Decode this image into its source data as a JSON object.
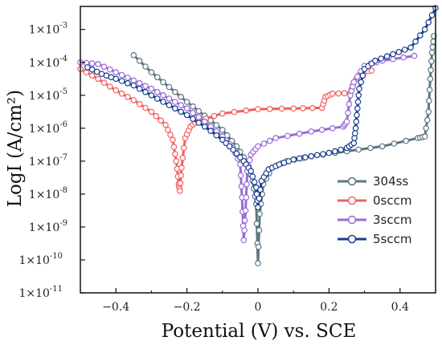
{
  "chart_data": {
    "type": "line",
    "title": "",
    "xlabel": "Potential (V) vs. SCE",
    "ylabel": "LogI (A/cm²)",
    "xlim": [
      -0.5,
      0.5
    ],
    "ylim_log10": [
      -11,
      -2.3
    ],
    "xscale": "linear",
    "yscale": "log",
    "x_ticks": [
      -0.4,
      -0.2,
      0,
      0.2,
      0.4
    ],
    "x_tick_labels": [
      "−0.4",
      "−0.2",
      "0",
      "0.2",
      "0.4"
    ],
    "y_tick_labels": [
      {
        "exp": -3,
        "label": "1×10",
        "sup": "-3"
      },
      {
        "exp": -4,
        "label": "1×10",
        "sup": "-4"
      },
      {
        "exp": -5,
        "label": "1×10",
        "sup": "-5"
      },
      {
        "exp": -6,
        "label": "1×10",
        "sup": "-6"
      },
      {
        "exp": -7,
        "label": "1×10",
        "sup": "-7"
      },
      {
        "exp": -8,
        "label": "1×10",
        "sup": "-8"
      },
      {
        "exp": -9,
        "label": "1×10",
        "sup": "-9"
      },
      {
        "exp": -10,
        "label": "1×10",
        "sup": "-10"
      },
      {
        "exp": -11,
        "label": "1×10",
        "sup": "-11"
      }
    ],
    "grid": false,
    "legend_position": "lower-right",
    "series": [
      {
        "name": "304ss",
        "color": "#5b7680",
        "points": [
          [
            -0.35,
            -3.78
          ],
          [
            -0.3,
            -4.3
          ],
          [
            -0.25,
            -4.75
          ],
          [
            -0.2,
            -5.2
          ],
          [
            -0.15,
            -5.62
          ],
          [
            -0.1,
            -6.05
          ],
          [
            -0.06,
            -6.55
          ],
          [
            -0.03,
            -7.05
          ],
          [
            -0.015,
            -7.6
          ],
          [
            -0.005,
            -8.3
          ],
          [
            0.0,
            -10.1
          ],
          [
            0.005,
            -8.6
          ],
          [
            0.015,
            -7.7
          ],
          [
            0.04,
            -7.2
          ],
          [
            0.08,
            -7.0
          ],
          [
            0.15,
            -6.85
          ],
          [
            0.25,
            -6.7
          ],
          [
            0.35,
            -6.55
          ],
          [
            0.45,
            -6.3
          ],
          [
            0.47,
            -6.25
          ],
          [
            0.48,
            -5.5
          ],
          [
            0.485,
            -4.5
          ],
          [
            0.49,
            -3.7
          ],
          [
            0.495,
            -3.2
          ]
        ]
      },
      {
        "name": "0sccm",
        "color": "#f25f5f",
        "points": [
          [
            -0.5,
            -4.2
          ],
          [
            -0.45,
            -4.5
          ],
          [
            -0.4,
            -4.85
          ],
          [
            -0.35,
            -5.15
          ],
          [
            -0.3,
            -5.5
          ],
          [
            -0.26,
            -5.9
          ],
          [
            -0.24,
            -6.35
          ],
          [
            -0.23,
            -7.0
          ],
          [
            -0.223,
            -7.7
          ],
          [
            -0.22,
            -7.9
          ],
          [
            -0.215,
            -7.2
          ],
          [
            -0.205,
            -6.3
          ],
          [
            -0.19,
            -5.95
          ],
          [
            -0.17,
            -5.78
          ],
          [
            -0.1,
            -5.55
          ],
          [
            0.0,
            -5.42
          ],
          [
            0.1,
            -5.4
          ],
          [
            0.18,
            -5.38
          ],
          [
            0.19,
            -5.05
          ],
          [
            0.21,
            -4.95
          ],
          [
            0.26,
            -4.93
          ],
          [
            0.27,
            -4.6
          ],
          [
            0.29,
            -4.3
          ],
          [
            0.32,
            -4.25
          ]
        ]
      },
      {
        "name": "3sccm",
        "color": "#9a6ad8",
        "points": [
          [
            -0.5,
            -4.0
          ],
          [
            -0.45,
            -4.05
          ],
          [
            -0.4,
            -4.3
          ],
          [
            -0.35,
            -4.55
          ],
          [
            -0.3,
            -4.8
          ],
          [
            -0.25,
            -5.1
          ],
          [
            -0.2,
            -5.4
          ],
          [
            -0.15,
            -5.8
          ],
          [
            -0.1,
            -6.25
          ],
          [
            -0.07,
            -6.6
          ],
          [
            -0.05,
            -7.1
          ],
          [
            -0.045,
            -8.1
          ],
          [
            -0.04,
            -9.4
          ],
          [
            -0.035,
            -8.5
          ],
          [
            -0.03,
            -7.3
          ],
          [
            -0.02,
            -6.8
          ],
          [
            0.0,
            -6.55
          ],
          [
            0.05,
            -6.3
          ],
          [
            0.15,
            -6.1
          ],
          [
            0.24,
            -5.95
          ],
          [
            0.25,
            -5.8
          ],
          [
            0.26,
            -5.0
          ],
          [
            0.27,
            -4.6
          ],
          [
            0.3,
            -4.1
          ],
          [
            0.35,
            -3.95
          ],
          [
            0.44,
            -3.8
          ]
        ]
      },
      {
        "name": "5sccm",
        "color": "#1a3d8f",
        "points": [
          [
            -0.48,
            -4.15
          ],
          [
            -0.44,
            -4.35
          ],
          [
            -0.4,
            -4.5
          ],
          [
            -0.35,
            -4.7
          ],
          [
            -0.3,
            -5.0
          ],
          [
            -0.25,
            -5.3
          ],
          [
            -0.2,
            -5.6
          ],
          [
            -0.15,
            -5.95
          ],
          [
            -0.1,
            -6.35
          ],
          [
            -0.07,
            -6.65
          ],
          [
            -0.04,
            -7.0
          ],
          [
            -0.02,
            -7.3
          ],
          [
            -0.005,
            -7.8
          ],
          [
            0.0,
            -8.4
          ],
          [
            0.01,
            -7.6
          ],
          [
            0.03,
            -7.25
          ],
          [
            0.06,
            -7.1
          ],
          [
            0.1,
            -6.95
          ],
          [
            0.15,
            -6.85
          ],
          [
            0.2,
            -6.75
          ],
          [
            0.25,
            -6.6
          ],
          [
            0.27,
            -6.45
          ],
          [
            0.275,
            -6.0
          ],
          [
            0.28,
            -5.4
          ],
          [
            0.285,
            -4.8
          ],
          [
            0.3,
            -4.2
          ],
          [
            0.33,
            -3.95
          ],
          [
            0.38,
            -3.75
          ],
          [
            0.43,
            -3.55
          ],
          [
            0.47,
            -3.0
          ],
          [
            0.5,
            -2.35
          ]
        ]
      }
    ]
  }
}
